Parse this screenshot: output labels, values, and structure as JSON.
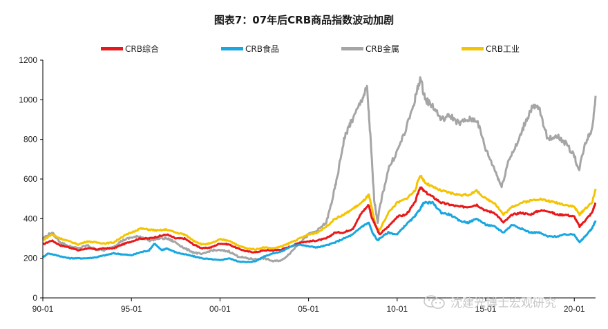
{
  "chart_data": {
    "type": "line",
    "title": "图表7：07年后CRB商品指数波动加剧",
    "xlabel": "",
    "ylabel": "",
    "x_ticks": [
      "90-01",
      "95-01",
      "00-01",
      "05-01",
      "10-01",
      "15-01",
      "20-01"
    ],
    "x_range": [
      1990.0,
      2021.2
    ],
    "y_ticks": [
      0,
      200,
      400,
      600,
      800,
      1000,
      1200
    ],
    "ylim": [
      0,
      1200
    ],
    "grid": false,
    "legend_position": "top",
    "series": [
      {
        "name": "CRB综合",
        "color": "#e8191a",
        "points": [
          [
            1990.0,
            270
          ],
          [
            1990.5,
            290
          ],
          [
            1991.0,
            265
          ],
          [
            1991.5,
            255
          ],
          [
            1992.0,
            240
          ],
          [
            1992.5,
            250
          ],
          [
            1993.0,
            245
          ],
          [
            1993.5,
            250
          ],
          [
            1994.0,
            250
          ],
          [
            1994.5,
            270
          ],
          [
            1995.0,
            285
          ],
          [
            1995.5,
            300
          ],
          [
            1996.0,
            300
          ],
          [
            1996.5,
            310
          ],
          [
            1997.0,
            320
          ],
          [
            1997.5,
            300
          ],
          [
            1998.0,
            300
          ],
          [
            1998.5,
            270
          ],
          [
            1999.0,
            250
          ],
          [
            1999.5,
            255
          ],
          [
            2000.0,
            275
          ],
          [
            2000.5,
            270
          ],
          [
            2001.0,
            250
          ],
          [
            2001.5,
            235
          ],
          [
            2002.0,
            230
          ],
          [
            2002.5,
            240
          ],
          [
            2003.0,
            240
          ],
          [
            2003.5,
            245
          ],
          [
            2004.0,
            260
          ],
          [
            2004.5,
            280
          ],
          [
            2005.0,
            285
          ],
          [
            2005.5,
            290
          ],
          [
            2006.0,
            300
          ],
          [
            2006.5,
            330
          ],
          [
            2007.0,
            330
          ],
          [
            2007.5,
            350
          ],
          [
            2008.0,
            430
          ],
          [
            2008.4,
            470
          ],
          [
            2008.55,
            410
          ],
          [
            2008.75,
            370
          ],
          [
            2009.0,
            320
          ],
          [
            2009.5,
            360
          ],
          [
            2010.0,
            410
          ],
          [
            2010.5,
            420
          ],
          [
            2011.0,
            480
          ],
          [
            2011.3,
            560
          ],
          [
            2011.5,
            540
          ],
          [
            2012.0,
            510
          ],
          [
            2012.5,
            480
          ],
          [
            2013.0,
            470
          ],
          [
            2013.5,
            460
          ],
          [
            2014.0,
            460
          ],
          [
            2014.5,
            470
          ],
          [
            2015.0,
            440
          ],
          [
            2015.5,
            430
          ],
          [
            2016.0,
            380
          ],
          [
            2016.5,
            420
          ],
          [
            2017.0,
            430
          ],
          [
            2017.5,
            420
          ],
          [
            2018.0,
            440
          ],
          [
            2018.5,
            440
          ],
          [
            2019.0,
            420
          ],
          [
            2019.5,
            420
          ],
          [
            2020.0,
            410
          ],
          [
            2020.3,
            360
          ],
          [
            2020.6,
            390
          ],
          [
            2021.0,
            430
          ],
          [
            2021.2,
            480
          ]
        ]
      },
      {
        "name": "CRB食品",
        "color": "#19a7e0",
        "points": [
          [
            1990.0,
            205
          ],
          [
            1990.3,
            225
          ],
          [
            1991.0,
            210
          ],
          [
            1991.5,
            200
          ],
          [
            1992.0,
            200
          ],
          [
            1992.5,
            200
          ],
          [
            1993.0,
            205
          ],
          [
            1993.5,
            215
          ],
          [
            1994.0,
            225
          ],
          [
            1994.5,
            220
          ],
          [
            1995.0,
            215
          ],
          [
            1995.5,
            230
          ],
          [
            1996.0,
            240
          ],
          [
            1996.3,
            275
          ],
          [
            1996.7,
            240
          ],
          [
            1997.0,
            250
          ],
          [
            1997.5,
            230
          ],
          [
            1998.0,
            220
          ],
          [
            1998.5,
            210
          ],
          [
            1999.0,
            200
          ],
          [
            1999.5,
            195
          ],
          [
            2000.0,
            190
          ],
          [
            2000.5,
            200
          ],
          [
            2001.0,
            185
          ],
          [
            2001.5,
            180
          ],
          [
            2002.0,
            185
          ],
          [
            2002.5,
            210
          ],
          [
            2003.0,
            225
          ],
          [
            2003.5,
            235
          ],
          [
            2004.0,
            260
          ],
          [
            2004.5,
            270
          ],
          [
            2005.0,
            260
          ],
          [
            2005.5,
            255
          ],
          [
            2006.0,
            265
          ],
          [
            2006.5,
            280
          ],
          [
            2007.0,
            300
          ],
          [
            2007.5,
            320
          ],
          [
            2008.0,
            360
          ],
          [
            2008.4,
            380
          ],
          [
            2008.6,
            330
          ],
          [
            2008.9,
            290
          ],
          [
            2009.0,
            300
          ],
          [
            2009.5,
            330
          ],
          [
            2010.0,
            320
          ],
          [
            2010.5,
            370
          ],
          [
            2011.0,
            410
          ],
          [
            2011.3,
            450
          ],
          [
            2011.5,
            480
          ],
          [
            2012.0,
            480
          ],
          [
            2012.5,
            430
          ],
          [
            2013.0,
            420
          ],
          [
            2013.5,
            390
          ],
          [
            2014.0,
            380
          ],
          [
            2014.5,
            400
          ],
          [
            2015.0,
            370
          ],
          [
            2015.5,
            360
          ],
          [
            2016.0,
            330
          ],
          [
            2016.5,
            370
          ],
          [
            2017.0,
            350
          ],
          [
            2017.5,
            330
          ],
          [
            2018.0,
            330
          ],
          [
            2018.5,
            310
          ],
          [
            2019.0,
            310
          ],
          [
            2019.5,
            320
          ],
          [
            2020.0,
            320
          ],
          [
            2020.3,
            280
          ],
          [
            2020.6,
            310
          ],
          [
            2021.0,
            350
          ],
          [
            2021.2,
            390
          ]
        ]
      },
      {
        "name": "CRB金属",
        "color": "#a5a5a5",
        "points": [
          [
            1990.0,
            300
          ],
          [
            1990.5,
            330
          ],
          [
            1991.0,
            280
          ],
          [
            1991.5,
            260
          ],
          [
            1992.0,
            250
          ],
          [
            1992.5,
            265
          ],
          [
            1993.0,
            245
          ],
          [
            1993.5,
            240
          ],
          [
            1994.0,
            260
          ],
          [
            1994.5,
            290
          ],
          [
            1995.0,
            305
          ],
          [
            1995.5,
            310
          ],
          [
            1996.0,
            290
          ],
          [
            1996.5,
            300
          ],
          [
            1997.0,
            300
          ],
          [
            1997.5,
            280
          ],
          [
            1998.0,
            250
          ],
          [
            1998.5,
            230
          ],
          [
            1999.0,
            220
          ],
          [
            1999.5,
            240
          ],
          [
            2000.0,
            240
          ],
          [
            2000.5,
            235
          ],
          [
            2001.0,
            210
          ],
          [
            2001.5,
            200
          ],
          [
            2002.0,
            195
          ],
          [
            2002.5,
            200
          ],
          [
            2003.0,
            185
          ],
          [
            2003.5,
            190
          ],
          [
            2004.0,
            230
          ],
          [
            2004.5,
            280
          ],
          [
            2005.0,
            320
          ],
          [
            2005.5,
            340
          ],
          [
            2006.0,
            380
          ],
          [
            2006.3,
            480
          ],
          [
            2006.6,
            600
          ],
          [
            2007.0,
            800
          ],
          [
            2007.3,
            870
          ],
          [
            2007.5,
            900
          ],
          [
            2008.0,
            1000
          ],
          [
            2008.3,
            1060
          ],
          [
            2008.5,
            800
          ],
          [
            2008.7,
            500
          ],
          [
            2008.9,
            380
          ],
          [
            2009.0,
            450
          ],
          [
            2009.5,
            650
          ],
          [
            2010.0,
            740
          ],
          [
            2010.5,
            850
          ],
          [
            2011.0,
            1000
          ],
          [
            2011.3,
            1110
          ],
          [
            2011.6,
            1000
          ],
          [
            2012.0,
            970
          ],
          [
            2012.5,
            900
          ],
          [
            2013.0,
            920
          ],
          [
            2013.5,
            880
          ],
          [
            2014.0,
            900
          ],
          [
            2014.5,
            900
          ],
          [
            2015.0,
            750
          ],
          [
            2015.5,
            650
          ],
          [
            2015.9,
            560
          ],
          [
            2016.3,
            700
          ],
          [
            2016.8,
            780
          ],
          [
            2017.2,
            880
          ],
          [
            2017.6,
            960
          ],
          [
            2018.0,
            960
          ],
          [
            2018.5,
            800
          ],
          [
            2019.0,
            820
          ],
          [
            2019.5,
            780
          ],
          [
            2020.0,
            720
          ],
          [
            2020.25,
            640
          ],
          [
            2020.6,
            780
          ],
          [
            2021.0,
            850
          ],
          [
            2021.2,
            1020
          ]
        ]
      },
      {
        "name": "CRB工业",
        "color": "#f5c400",
        "points": [
          [
            1990.0,
            290
          ],
          [
            1990.5,
            320
          ],
          [
            1991.0,
            300
          ],
          [
            1991.5,
            285
          ],
          [
            1992.0,
            270
          ],
          [
            1992.5,
            285
          ],
          [
            1993.0,
            280
          ],
          [
            1993.5,
            275
          ],
          [
            1994.0,
            280
          ],
          [
            1994.5,
            310
          ],
          [
            1995.0,
            330
          ],
          [
            1995.5,
            350
          ],
          [
            1996.0,
            345
          ],
          [
            1996.5,
            340
          ],
          [
            1997.0,
            345
          ],
          [
            1997.5,
            330
          ],
          [
            1998.0,
            320
          ],
          [
            1998.5,
            290
          ],
          [
            1999.0,
            270
          ],
          [
            1999.5,
            275
          ],
          [
            2000.0,
            295
          ],
          [
            2000.5,
            290
          ],
          [
            2001.0,
            265
          ],
          [
            2001.5,
            250
          ],
          [
            2002.0,
            245
          ],
          [
            2002.5,
            255
          ],
          [
            2003.0,
            250
          ],
          [
            2003.5,
            260
          ],
          [
            2004.0,
            280
          ],
          [
            2004.5,
            300
          ],
          [
            2005.0,
            320
          ],
          [
            2005.5,
            330
          ],
          [
            2006.0,
            360
          ],
          [
            2006.5,
            400
          ],
          [
            2007.0,
            420
          ],
          [
            2007.5,
            450
          ],
          [
            2008.0,
            480
          ],
          [
            2008.4,
            520
          ],
          [
            2008.6,
            440
          ],
          [
            2008.8,
            360
          ],
          [
            2009.0,
            340
          ],
          [
            2009.5,
            430
          ],
          [
            2010.0,
            480
          ],
          [
            2010.5,
            500
          ],
          [
            2011.0,
            540
          ],
          [
            2011.3,
            620
          ],
          [
            2011.6,
            580
          ],
          [
            2012.0,
            560
          ],
          [
            2012.5,
            540
          ],
          [
            2013.0,
            530
          ],
          [
            2013.5,
            520
          ],
          [
            2014.0,
            520
          ],
          [
            2014.5,
            540
          ],
          [
            2015.0,
            500
          ],
          [
            2015.5,
            480
          ],
          [
            2016.0,
            420
          ],
          [
            2016.5,
            460
          ],
          [
            2017.0,
            480
          ],
          [
            2017.5,
            490
          ],
          [
            2018.0,
            500
          ],
          [
            2018.5,
            490
          ],
          [
            2019.0,
            480
          ],
          [
            2019.5,
            470
          ],
          [
            2020.0,
            460
          ],
          [
            2020.3,
            420
          ],
          [
            2020.6,
            450
          ],
          [
            2021.0,
            480
          ],
          [
            2021.2,
            550
          ]
        ]
      }
    ]
  },
  "watermark": {
    "text": "沈建光博士宏观研究"
  },
  "icons": {
    "watermark": "wechat-icon"
  }
}
